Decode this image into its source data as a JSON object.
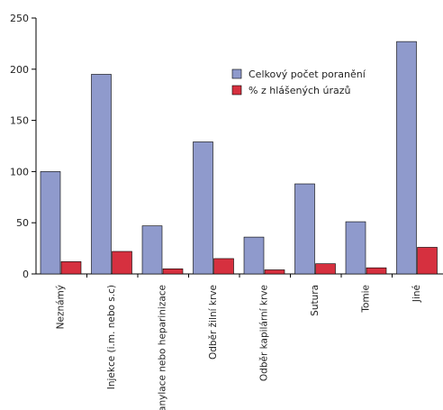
{
  "chart_data": {
    "type": "bar",
    "categories": [
      "Neznámý",
      "Injekce (i.m. nebo s.c)",
      "Kanylace nebo heparinizace",
      "Odběr žilní krve",
      "Odběr kapilární krve",
      "Sutura",
      "Tomie",
      "Jiné"
    ],
    "series": [
      {
        "name": "Celkový počet poranění",
        "color": "#8f9acc",
        "values": [
          100,
          195,
          47,
          129,
          36,
          88,
          51,
          227
        ]
      },
      {
        "name": "% z hlášených úrazů",
        "color": "#d6303f",
        "values": [
          12,
          22,
          5,
          15,
          4,
          10,
          6,
          26
        ]
      }
    ],
    "ylim": [
      0,
      250
    ],
    "yticks": [
      "0",
      "50",
      "100",
      "150",
      "200",
      "250"
    ],
    "title": "",
    "xlabel": "",
    "ylabel": "",
    "grid": false,
    "legend": "top-right"
  }
}
